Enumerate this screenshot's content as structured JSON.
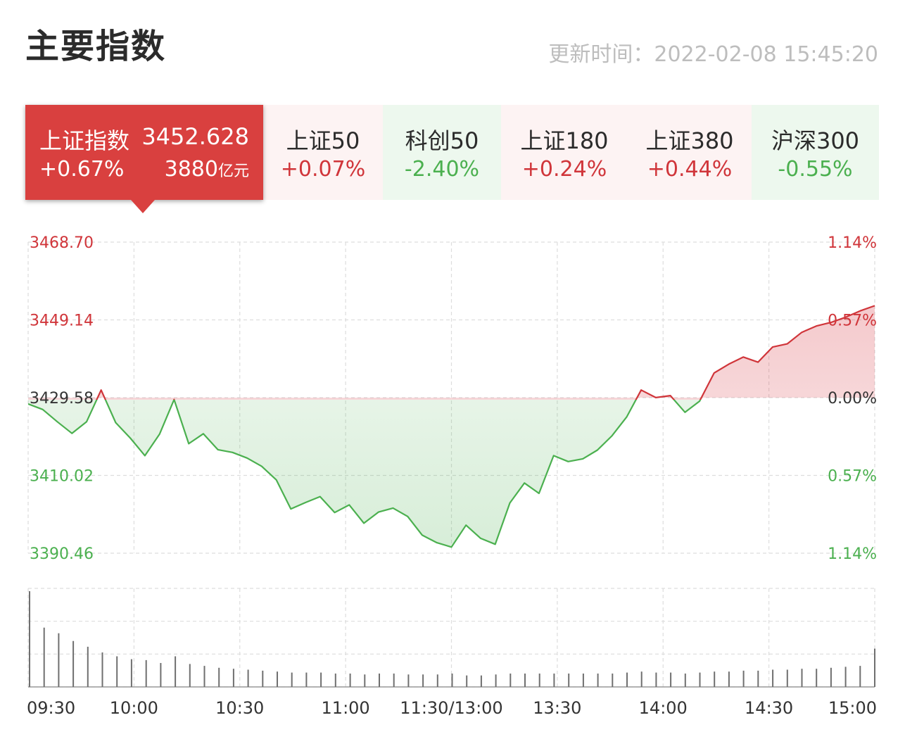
{
  "header": {
    "title": "主要指数",
    "updated_label": "更新时间：",
    "updated_time": "2022-02-08 15:45:20"
  },
  "active_index": {
    "name": "上证指数",
    "value": "3452.628",
    "change": "+0.67%",
    "turnover": "3880",
    "turnover_unit": "亿元"
  },
  "tabs": [
    {
      "name": "上证50",
      "change": "+0.07%",
      "trend": "up"
    },
    {
      "name": "科创50",
      "change": "-2.40%",
      "trend": "down"
    },
    {
      "name": "上证180",
      "change": "+0.24%",
      "trend": "up"
    },
    {
      "name": "上证380",
      "change": "+0.44%",
      "trend": "up"
    },
    {
      "name": "沪深300",
      "change": "-0.55%",
      "trend": "down"
    }
  ],
  "colors": {
    "up": "#d0353a",
    "down": "#4bb04f",
    "neutral": "#333333",
    "grid": "#dddddd",
    "volume": "#6f6f6f"
  },
  "chart_data": {
    "type": "line",
    "prev_close": 3429.58,
    "ylim": [
      3390.46,
      3468.7
    ],
    "y_tick_labels": [
      "3468.70",
      "3449.14",
      "3429.58",
      "3410.02",
      "3390.46"
    ],
    "pct_tick_labels": [
      "1.14%",
      "0.57%",
      "0.00%",
      "0.57%",
      "1.14%"
    ],
    "x_tick_labels": [
      "09:30",
      "10:00",
      "10:30",
      "11:00",
      "11:30/13:00",
      "13:30",
      "14:00",
      "14:30",
      "15:00"
    ],
    "price_series": {
      "interval_minutes": 5,
      "values": [
        3428.0,
        3426.6,
        3423.5,
        3420.6,
        3423.5,
        3431.5,
        3423.3,
        3419.4,
        3415.0,
        3420.4,
        3429.1,
        3418.0,
        3420.5,
        3416.5,
        3415.8,
        3414.4,
        3412.3,
        3408.9,
        3401.6,
        3403.2,
        3404.7,
        3400.7,
        3402.6,
        3398.0,
        3400.8,
        3401.8,
        3399.7,
        3395.0,
        3393.1,
        3392.0,
        3397.5,
        3394.2,
        3392.7,
        3403.1,
        3408.1,
        3405.5,
        3415.0,
        3413.5,
        3414.2,
        3416.4,
        3420.0,
        3424.7,
        3431.5,
        3429.6,
        3430.1,
        3425.9,
        3428.7,
        3435.8,
        3438.0,
        3439.8,
        3438.5,
        3442.3,
        3443.1,
        3446.0,
        3447.6,
        3448.5,
        3449.8,
        3451.4,
        3452.7
      ]
    },
    "volume_series": {
      "interval_minutes": 5,
      "values": [
        100,
        62,
        56,
        48,
        42,
        36,
        32,
        29,
        28,
        25,
        32,
        24,
        22,
        20,
        19,
        18,
        17,
        16,
        15,
        15,
        15,
        14,
        14,
        13,
        14,
        14,
        13,
        13,
        13,
        14,
        12,
        12,
        13,
        14,
        14,
        14,
        14,
        14,
        14,
        14,
        14,
        15,
        16,
        15,
        15,
        14,
        15,
        16,
        16,
        17,
        17,
        18,
        18,
        19,
        19,
        20,
        21,
        22,
        40
      ]
    }
  }
}
